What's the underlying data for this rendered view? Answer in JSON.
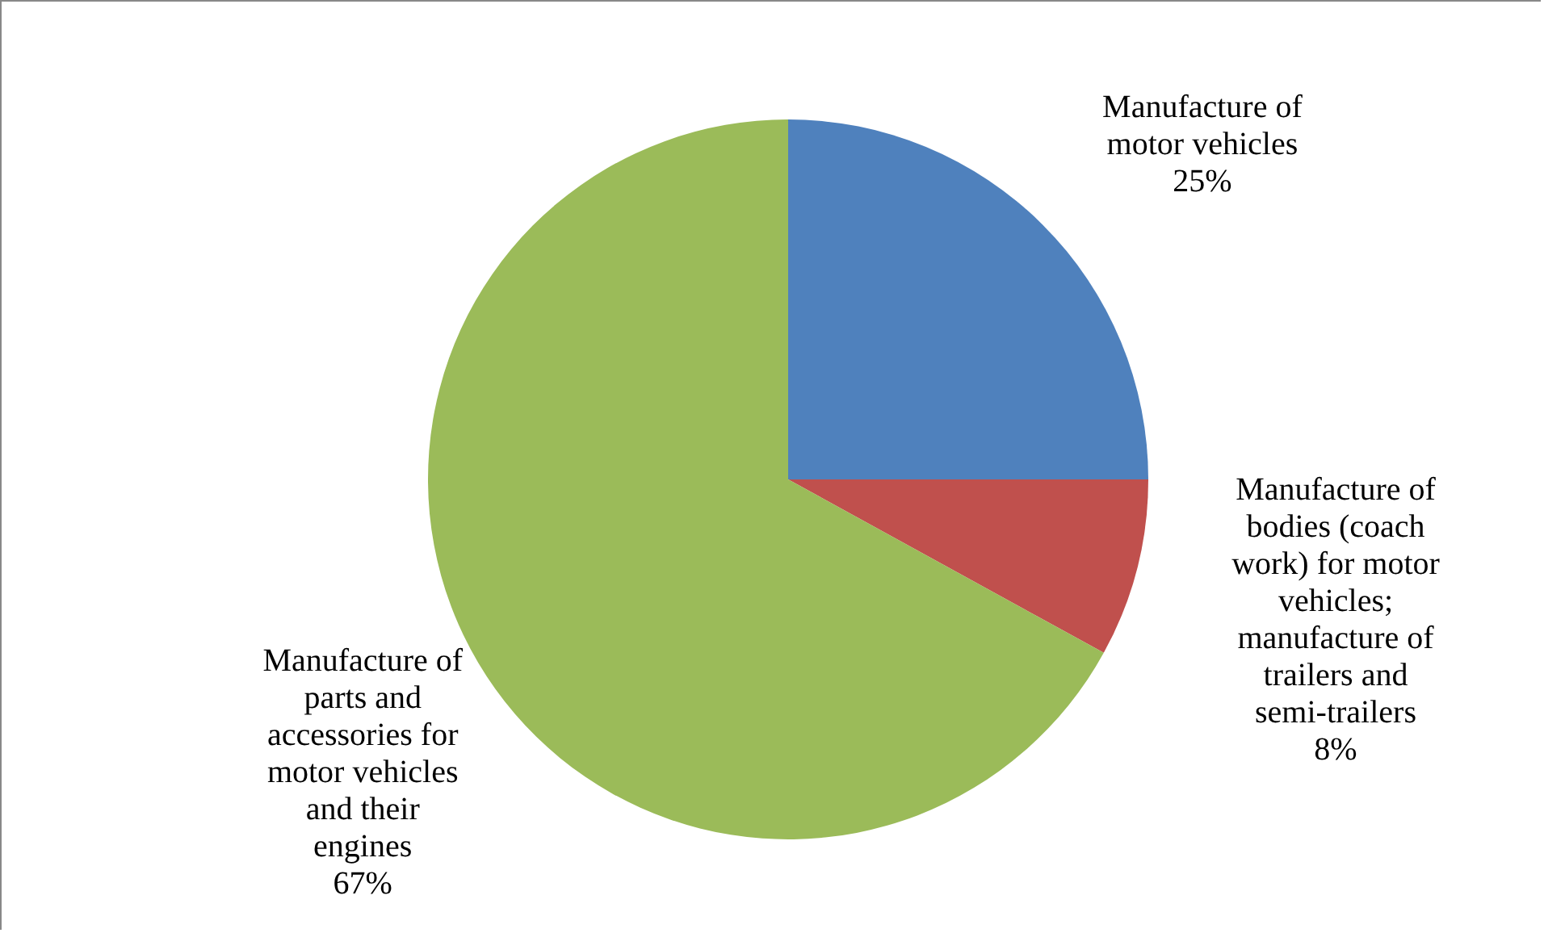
{
  "chart_data": {
    "type": "pie",
    "categories": [
      "Manufacture of motor vehicles",
      "Manufacture of bodies (coach work) for motor vehicles; manufacture of trailers and semi-trailers",
      "Manufacture of parts and accessories for motor vehicles and their engines"
    ],
    "values": [
      25,
      8,
      67
    ],
    "value_labels": [
      "25%",
      "8%",
      "67%"
    ],
    "colors": [
      "#4f81bd",
      "#c0504d",
      "#9bbb59"
    ]
  }
}
